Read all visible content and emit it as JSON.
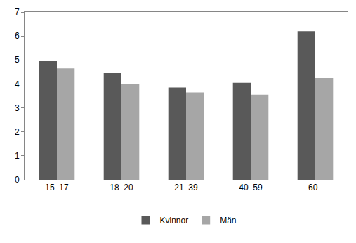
{
  "chart_data": {
    "type": "bar",
    "categories": [
      "15–17",
      "18–20",
      "21–39",
      "40–59",
      "60–"
    ],
    "series": [
      {
        "name": "Kvinnor",
        "color": "#595959",
        "values": [
          4.95,
          4.45,
          3.85,
          4.05,
          6.2
        ]
      },
      {
        "name": "Män",
        "color": "#a6a6a6",
        "values": [
          4.65,
          4.0,
          3.65,
          3.55,
          4.25
        ]
      }
    ],
    "ylim": [
      0,
      7
    ],
    "yticks": [
      0,
      1,
      2,
      3,
      4,
      5,
      6,
      7
    ],
    "grid": false,
    "legend": "bottom"
  }
}
